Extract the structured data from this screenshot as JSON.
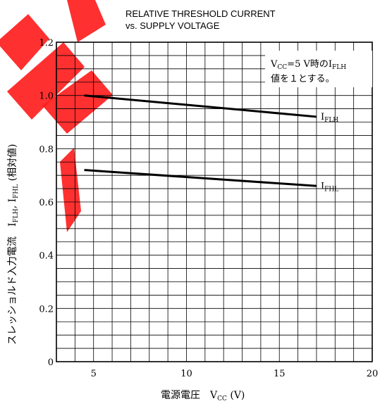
{
  "title_line1": "RELATIVE THRESHOLD CURRENT",
  "title_line2": "vs. SUPPLY VOLTAGE",
  "xlabel": "電源電圧　V",
  "xlabel_sub": "CC",
  "xlabel_unit": " (V)",
  "ylabel": "スレッショルド入力電流　I",
  "ylabel_sub1": "FLH",
  "ylabel_mid": ", I",
  "ylabel_sub2": "FHL",
  "ylabel_tail": " (相対値)",
  "note_line1_a": "V",
  "note_line1_sub": "CC",
  "note_line1_b": "=5 V時のI",
  "note_line1_sub2": "FLH",
  "note_line2": "値を１とする。",
  "colors": {
    "line": "#000000",
    "grid": "#000000",
    "watermark": "#ff1a1a"
  },
  "watermark_icon": "red-brush-stroke-watermark",
  "chart_data": {
    "type": "line",
    "title": "RELATIVE THRESHOLD CURRENT vs. SUPPLY VOLTAGE",
    "xlim": [
      3,
      20
    ],
    "ylim": [
      0,
      1.2
    ],
    "x_ticks": [
      "5",
      "10",
      "15",
      "20"
    ],
    "y_ticks": [
      "0",
      "0.2",
      "0.4",
      "0.6",
      "0.8",
      "1.0",
      "1.2"
    ],
    "grid": true,
    "series": [
      {
        "name": "I_FLH",
        "label_main": "I",
        "label_sub": "FLH",
        "x": [
          4.5,
          17
        ],
        "y": [
          1.0,
          0.92
        ]
      },
      {
        "name": "I_FHL",
        "label_main": "I",
        "label_sub": "FHL",
        "x": [
          4.5,
          17
        ],
        "y": [
          0.72,
          0.66
        ]
      }
    ]
  }
}
